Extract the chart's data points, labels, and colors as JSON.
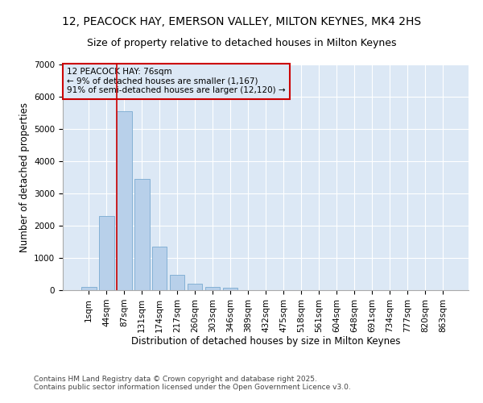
{
  "title_line1": "12, PEACOCK HAY, EMERSON VALLEY, MILTON KEYNES, MK4 2HS",
  "title_line2": "Size of property relative to detached houses in Milton Keynes",
  "xlabel": "Distribution of detached houses by size in Milton Keynes",
  "ylabel": "Number of detached properties",
  "categories": [
    "1sqm",
    "44sqm",
    "87sqm",
    "131sqm",
    "174sqm",
    "217sqm",
    "260sqm",
    "303sqm",
    "346sqm",
    "389sqm",
    "432sqm",
    "475sqm",
    "518sqm",
    "561sqm",
    "604sqm",
    "648sqm",
    "691sqm",
    "734sqm",
    "777sqm",
    "820sqm",
    "863sqm"
  ],
  "values": [
    100,
    2300,
    5550,
    3450,
    1350,
    470,
    190,
    100,
    70,
    0,
    0,
    0,
    0,
    0,
    0,
    0,
    0,
    0,
    0,
    0,
    0
  ],
  "bar_color": "#b8d0ea",
  "bar_edge_color": "#7aaad0",
  "vline_x_index": 2,
  "vline_color": "#cc0000",
  "annotation_title": "12 PEACOCK HAY: 76sqm",
  "annotation_line2": "← 9% of detached houses are smaller (1,167)",
  "annotation_line3": "91% of semi-detached houses are larger (12,120) →",
  "annotation_box_color": "#cc0000",
  "ylim": [
    0,
    7000
  ],
  "yticks": [
    0,
    1000,
    2000,
    3000,
    4000,
    5000,
    6000,
    7000
  ],
  "plot_bg_color": "#dce8f5",
  "fig_bg_color": "#ffffff",
  "footer_line1": "Contains HM Land Registry data © Crown copyright and database right 2025.",
  "footer_line2": "Contains public sector information licensed under the Open Government Licence v3.0.",
  "title_fontsize": 10,
  "subtitle_fontsize": 9,
  "axis_label_fontsize": 8.5,
  "tick_fontsize": 7.5,
  "annotation_fontsize": 7.5,
  "footer_fontsize": 6.5
}
